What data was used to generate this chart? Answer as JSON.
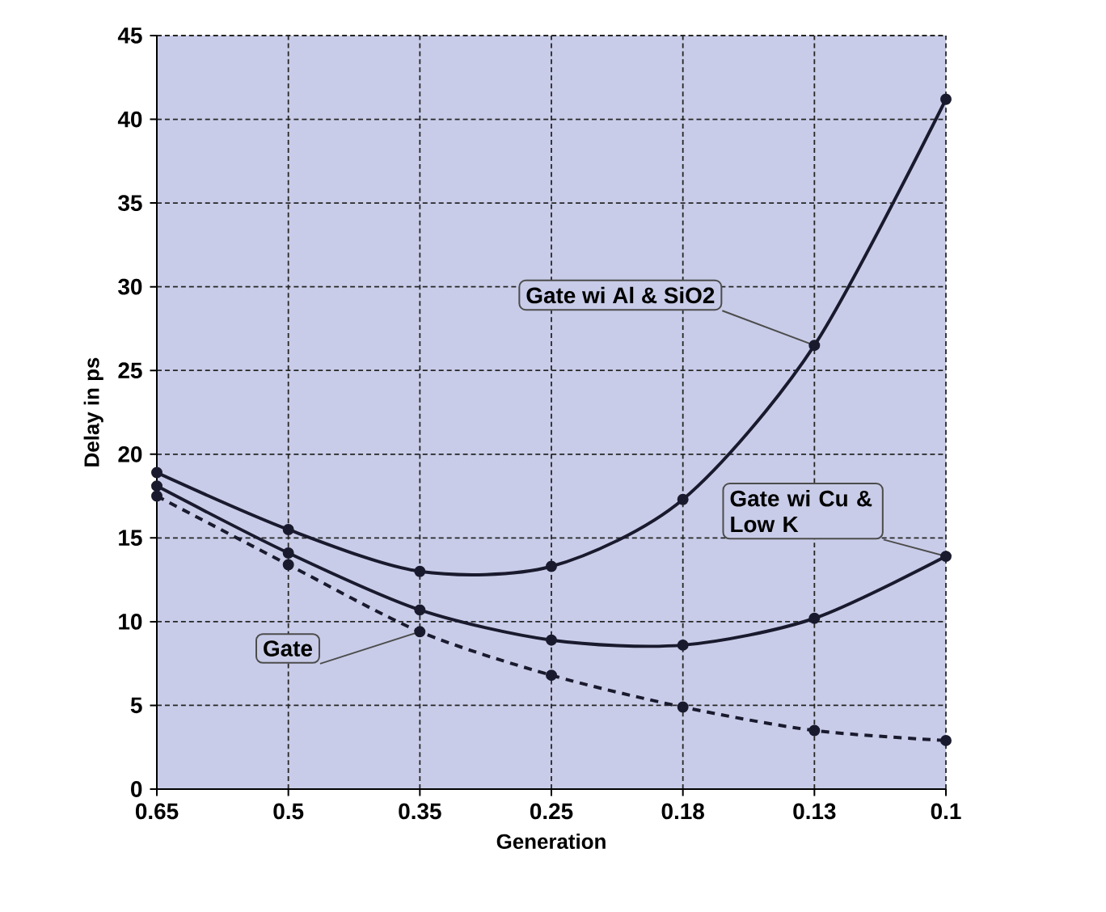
{
  "chart_data": {
    "type": "line",
    "xlabel": "Generation",
    "ylabel": "Delay in ps",
    "categories": [
      "0.65",
      "0.5",
      "0.35",
      "0.25",
      "0.18",
      "0.13",
      "0.1"
    ],
    "series": [
      {
        "name": "Gate wi Al & SiO2",
        "color": "#1a1a2e",
        "values": [
          18.9,
          15.5,
          13.0,
          13.3,
          17.3,
          26.5,
          41.2
        ],
        "line_style": "solid"
      },
      {
        "name": "Gate wi Cu & Low K",
        "color": "#1a1a2e",
        "values": [
          18.1,
          14.1,
          10.7,
          8.9,
          8.6,
          10.2,
          13.9
        ],
        "line_style": "solid"
      },
      {
        "name": "Gate",
        "color": "#1a1a2e",
        "values": [
          17.5,
          13.4,
          9.4,
          6.8,
          4.9,
          3.5,
          2.9
        ],
        "line_style": "dashed"
      }
    ],
    "ylim": [
      0,
      45
    ],
    "yticks": [
      0,
      5,
      10,
      15,
      20,
      25,
      30,
      35,
      40,
      45
    ],
    "grid": true,
    "legend": false,
    "marker": "circle"
  }
}
